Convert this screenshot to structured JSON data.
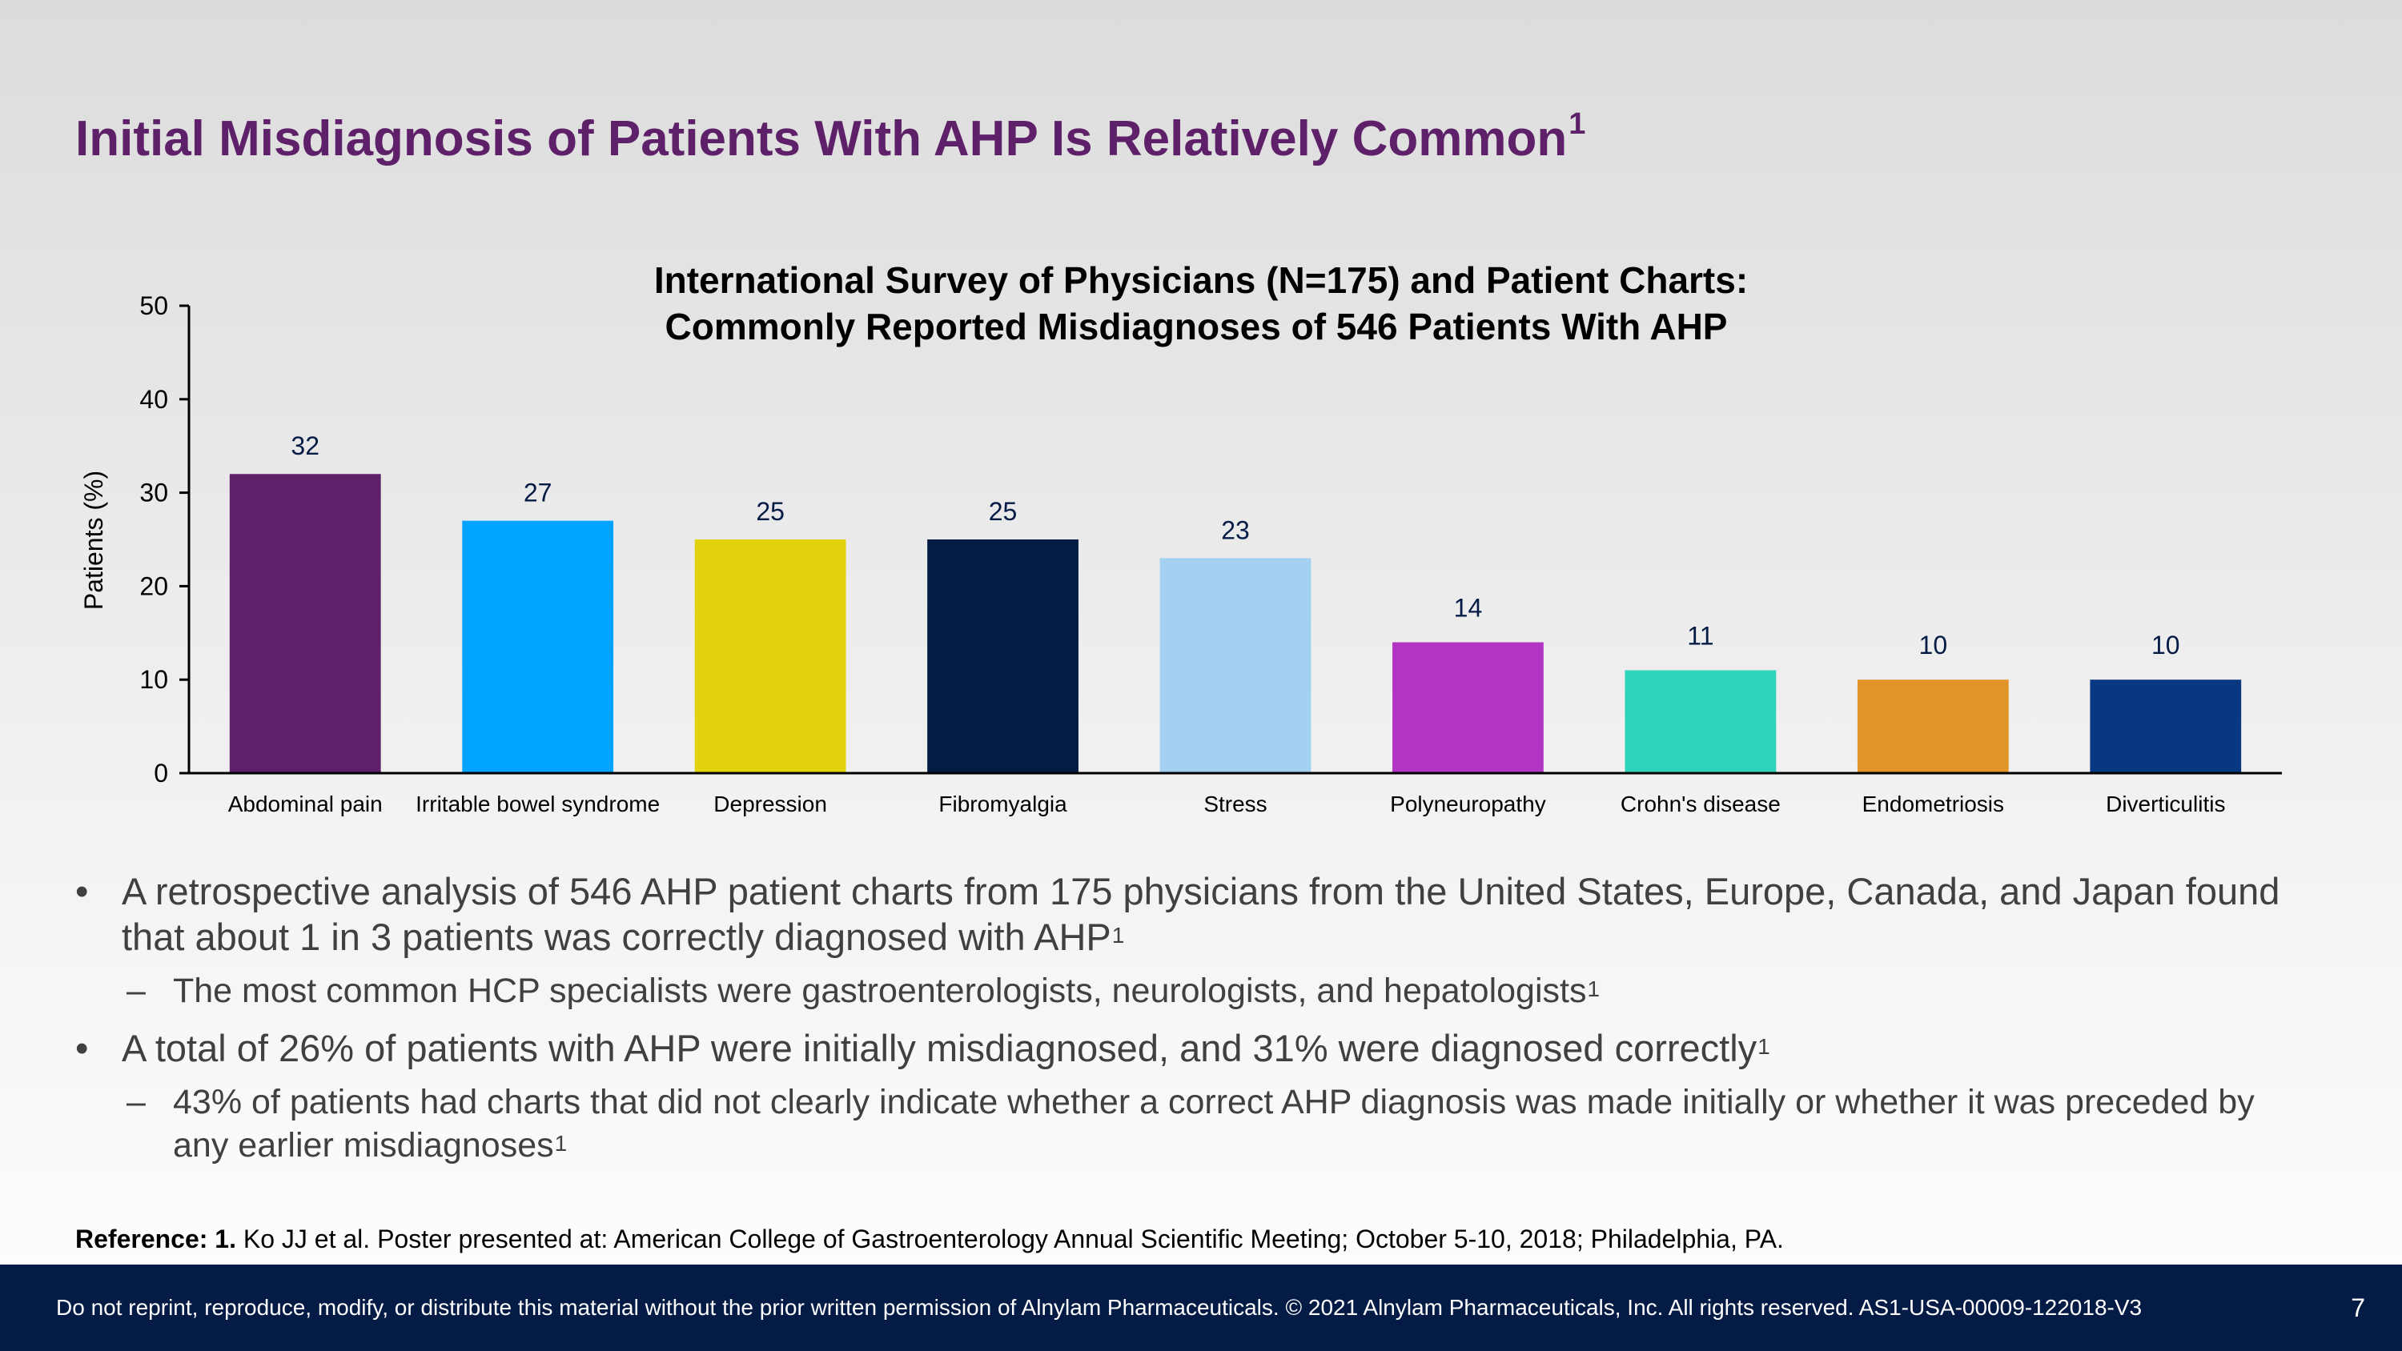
{
  "slide": {
    "title": "Initial Misdiagnosis of Patients With AHP Is Relatively Common",
    "title_sup": "1",
    "page_number": "7"
  },
  "chart_data": {
    "type": "bar",
    "title_line1": "International Survey of Physicians (N=175) and Patient Charts:",
    "title_line2": "Commonly Reported Misdiagnoses of 546 Patients With AHP",
    "ylabel": "Patients (%)",
    "xlabel": "",
    "ylim": [
      0,
      50
    ],
    "yticks": [
      "0",
      "10",
      "20",
      "30",
      "40",
      "50"
    ],
    "grid": false,
    "categories": [
      "Abdominal pain",
      "Irritable bowel syndrome",
      "Depression",
      "Fibromyalgia",
      "Stress",
      "Polyneuropathy",
      "Crohn's disease",
      "Endometriosis",
      "Diverticulitis"
    ],
    "values": [
      32,
      27,
      25,
      25,
      23,
      14,
      11,
      10,
      10
    ],
    "colors": [
      "#5e2169",
      "#00a3ff",
      "#e2d20c",
      "#031c43",
      "#a4d1f2",
      "#b135c2",
      "#2ed3bb",
      "#e19528",
      "#093883"
    ]
  },
  "bullets": [
    {
      "text": "A retrospective analysis of 546 AHP patient charts from 175 physicians from the United States, Europe, Canada, and Japan found that about 1 in 3 patients was correctly diagnosed with AHP",
      "sup": "1",
      "sub": {
        "text": "The most common HCP specialists were gastroenterologists, neurologists, and hepatologists",
        "sup": "1"
      }
    },
    {
      "text": "A total of 26% of patients with AHP were initially misdiagnosed, and 31% were diagnosed correctly",
      "sup": "1",
      "sub": {
        "text": "43% of patients had charts that did not clearly indicate whether a correct AHP diagnosis was made initially or whether it was preceded by any earlier misdiagnoses",
        "sup": "1"
      }
    }
  ],
  "bullet_marks": {
    "level1": "•",
    "level2": "–"
  },
  "reference": {
    "label": "Reference: 1.",
    "text": "Ko JJ et al. Poster presented at: American College of Gastroenterology Annual Scientific Meeting; October 5-10, 2018; Philadelphia, PA."
  },
  "footer": {
    "disclaimer": "Do not reprint, reproduce, modify, or distribute this material without the prior written permission of Alnylam Pharmaceuticals. © 2021 Alnylam Pharmaceuticals, Inc. All rights reserved. AS1-USA-00009-122018-V3"
  }
}
